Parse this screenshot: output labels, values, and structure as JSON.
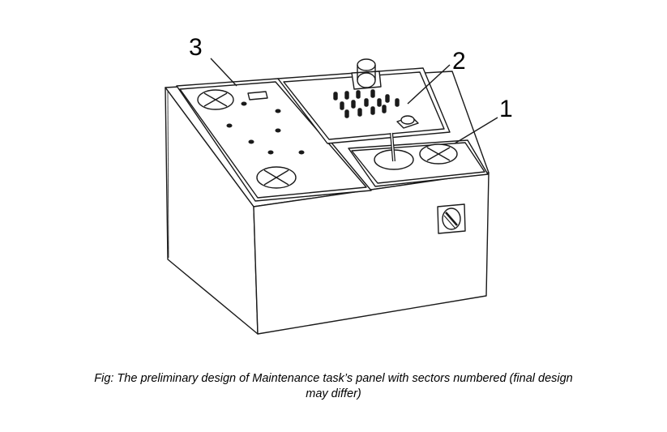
{
  "callouts": [
    {
      "number": "3",
      "sector": "left-panel"
    },
    {
      "number": "2",
      "sector": "upper-right-panel"
    },
    {
      "number": "1",
      "sector": "lower-right-panel"
    }
  ],
  "caption": {
    "line1": "Fig: The preliminary design of Maintenance task’s panel with sectors numbered (final design",
    "line2": "may differ)"
  },
  "colors": {
    "line": "#1a1a1a",
    "background": "#ffffff"
  }
}
